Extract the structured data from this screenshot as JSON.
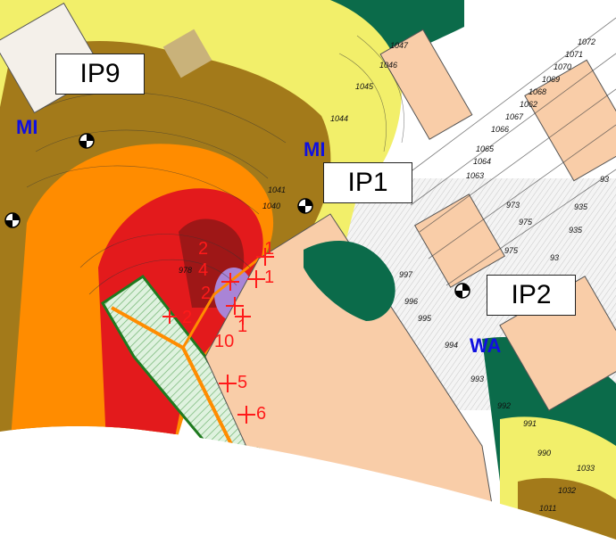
{
  "measurement_points": [
    "IP9",
    "IP1",
    "IP2"
  ],
  "zones": [
    "MI",
    "MI",
    "WA"
  ],
  "source_points": [
    "2",
    "2",
    "1",
    "4",
    "2",
    "1",
    "1",
    "10",
    "5",
    "6"
  ],
  "cadastre_labels": [
    "1047",
    "1046",
    "1045",
    "1044",
    "1041",
    "1040",
    "1072",
    "1071",
    "1070",
    "1069",
    "1068",
    "1062",
    "1067",
    "1066",
    "1065",
    "1064",
    "1063",
    "973",
    "975",
    "975",
    "935",
    "935",
    "93",
    "997",
    "996",
    "995",
    "994",
    "993",
    "992",
    "991",
    "990",
    "1033",
    "1032",
    "1011",
    "978",
    "93"
  ],
  "colors": {
    "yellow": "#f2ef6a",
    "olive": "#b8860b",
    "orange": "#ff8c00",
    "red": "#e31a1c",
    "darkred": "#b22222",
    "purple": "#9370db",
    "green": "#0b6b4a",
    "building": "#f9cda8",
    "hatch": "#cdeccd"
  }
}
